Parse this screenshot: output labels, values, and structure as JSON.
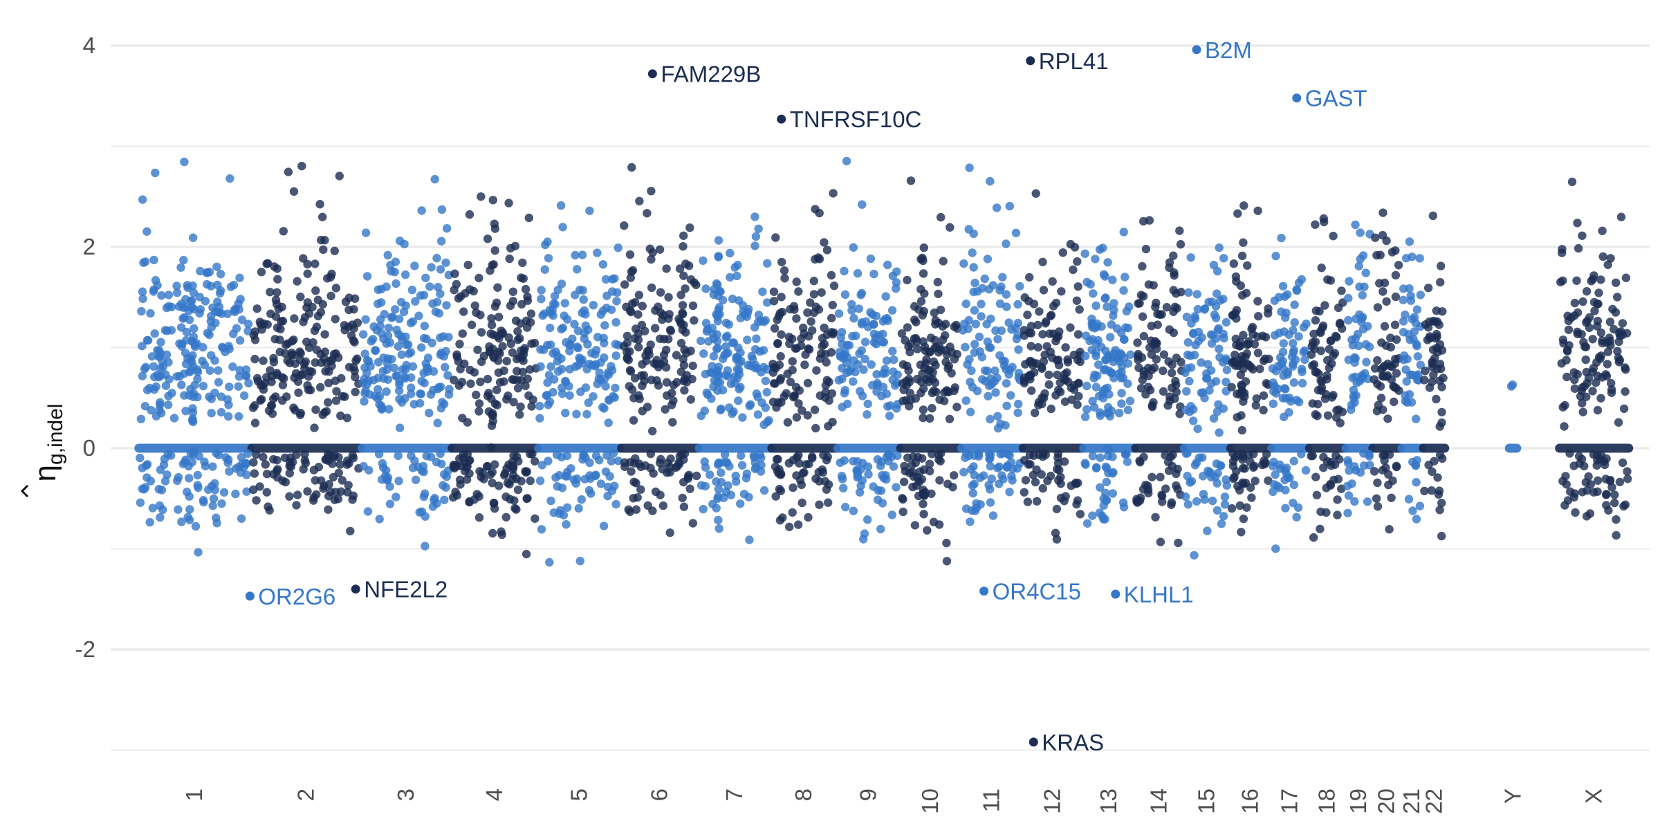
{
  "chart_data": {
    "type": "scatter",
    "title": "",
    "xlabel": "",
    "ylabel": {
      "symbol": "η",
      "subscript": "g,indel"
    },
    "ylim": [
      -3.05,
      4.15
    ],
    "yticks": [
      4,
      2,
      0,
      -2
    ],
    "ytick_labels": [
      "4",
      "2",
      "0",
      "-2"
    ],
    "grid": true,
    "legend": "none",
    "colors": {
      "dark": "#1b2d52",
      "light": "#3577c8",
      "grid": "#ebebeb",
      "text": "#4d4d4d"
    },
    "chromosomes": [
      {
        "label": "1",
        "start": 0,
        "end": 248
      },
      {
        "label": "2",
        "start": 248,
        "end": 490
      },
      {
        "label": "3",
        "start": 490,
        "end": 688
      },
      {
        "label": "4",
        "start": 688,
        "end": 878
      },
      {
        "label": "5",
        "start": 878,
        "end": 1060
      },
      {
        "label": "6",
        "start": 1060,
        "end": 1231
      },
      {
        "label": "7",
        "start": 1231,
        "end": 1390
      },
      {
        "label": "8",
        "start": 1390,
        "end": 1535
      },
      {
        "label": "9",
        "start": 1535,
        "end": 1673
      },
      {
        "label": "10",
        "start": 1673,
        "end": 1807
      },
      {
        "label": "11",
        "start": 1807,
        "end": 1942
      },
      {
        "label": "12",
        "start": 1942,
        "end": 2075
      },
      {
        "label": "13",
        "start": 2075,
        "end": 2189
      },
      {
        "label": "14",
        "start": 2189,
        "end": 2296
      },
      {
        "label": "15",
        "start": 2296,
        "end": 2398
      },
      {
        "label": "16",
        "start": 2398,
        "end": 2488
      },
      {
        "label": "17",
        "start": 2488,
        "end": 2571
      },
      {
        "label": "18",
        "start": 2571,
        "end": 2651
      },
      {
        "label": "19",
        "start": 2651,
        "end": 2710
      },
      {
        "label": "20",
        "start": 2710,
        "end": 2774
      },
      {
        "label": "21",
        "start": 2774,
        "end": 2821
      },
      {
        "label": "22",
        "start": 2821,
        "end": 2872
      },
      {
        "label": "Y",
        "start": 3010,
        "end": 3030
      },
      {
        "label": "X",
        "start": 3120,
        "end": 3276
      }
    ],
    "xlim": [
      -60,
      3320
    ],
    "labeled_points": [
      {
        "gene": "FAM229B",
        "chrom": "6",
        "pos": 1130,
        "value": 3.72
      },
      {
        "gene": "TNFRSF10C",
        "chrom": "8",
        "pos": 1413,
        "value": 3.27
      },
      {
        "gene": "RPL41",
        "chrom": "12",
        "pos": 1960,
        "value": 3.85
      },
      {
        "gene": "B2M",
        "chrom": "15",
        "pos": 2325,
        "value": 3.96
      },
      {
        "gene": "GAST",
        "chrom": "17",
        "pos": 2545,
        "value": 3.48
      },
      {
        "gene": "OR2G6",
        "chrom": "1",
        "pos": 246,
        "value": -1.47
      },
      {
        "gene": "NFE2L2",
        "chrom": "2",
        "pos": 478,
        "value": -1.4
      },
      {
        "gene": "OR4C15",
        "chrom": "11",
        "pos": 1858,
        "value": -1.42
      },
      {
        "gene": "KLHL1",
        "chrom": "13",
        "pos": 2147,
        "value": -1.45
      },
      {
        "gene": "KRAS",
        "chrom": "12",
        "pos": 1967,
        "value": -2.92
      }
    ]
  }
}
